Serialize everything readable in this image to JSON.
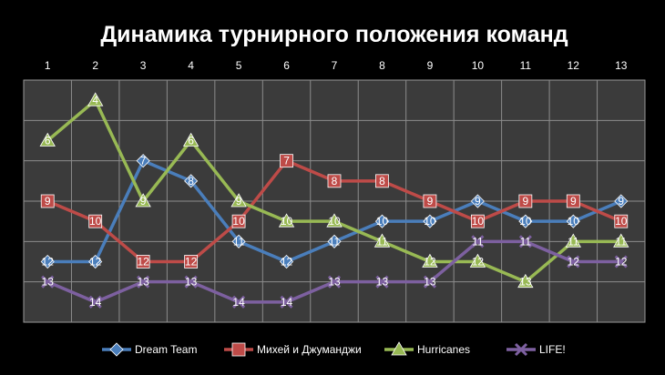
{
  "chart_data": {
    "type": "line",
    "title": "Динамика турнирного положения команд",
    "xlabel": "",
    "ylabel": "",
    "categories": [
      "1",
      "2",
      "3",
      "4",
      "5",
      "6",
      "7",
      "8",
      "9",
      "10",
      "11",
      "12",
      "13"
    ],
    "x_axis_position": "top",
    "y_axis": "inverted",
    "ylim": [
      3,
      15
    ],
    "grid": true,
    "legend_position": "bottom",
    "series": [
      {
        "name": "Dream Team",
        "color": "#4a7ebb",
        "marker": "diamond",
        "values": [
          12,
          12,
          7,
          8,
          11,
          12,
          11,
          10,
          10,
          9,
          10,
          10,
          9
        ]
      },
      {
        "name": "Михей и Джуманджи",
        "color": "#be4b48",
        "marker": "square",
        "values": [
          9,
          10,
          12,
          12,
          10,
          7,
          8,
          8,
          9,
          10,
          9,
          9,
          10
        ]
      },
      {
        "name": "Hurricanes",
        "color": "#98b954",
        "marker": "triangle",
        "values": [
          6,
          4,
          9,
          6,
          9,
          10,
          10,
          11,
          12,
          12,
          13,
          11,
          11
        ]
      },
      {
        "name": "LIFE!",
        "color": "#7d60a0",
        "marker": "x",
        "values": [
          13,
          14,
          13,
          13,
          14,
          14,
          13,
          13,
          13,
          11,
          11,
          12,
          12
        ]
      }
    ]
  }
}
